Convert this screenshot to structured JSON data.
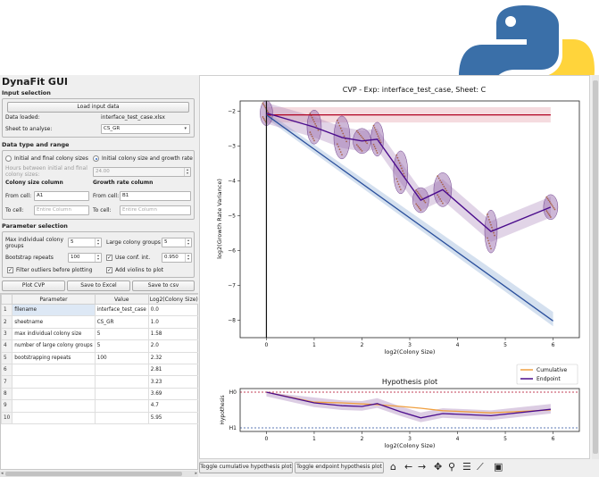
{
  "app_title": "DynaFit GUI",
  "input": {
    "section_label": "Input selection",
    "load_button": "Load input data",
    "data_loaded_label": "Data loaded:",
    "data_loaded_value": "interface_test_case.xlsx",
    "sheet_label": "Sheet to analyse:",
    "sheet_value": "CS_GR"
  },
  "data_type": {
    "section_label": "Data type and range",
    "radio_initial_final": "Initial and final colony sizes",
    "radio_initial_growth": "Initial colony size and growth rate",
    "radio_selected": "initial_growth",
    "hours_label_line1": "Hours between initial and final",
    "hours_label_line2": "colony sizes:",
    "hours_value": "24.00",
    "colony_col_label": "Colony size column",
    "growth_col_label": "Growth rate column",
    "from_cell_label": "From cell:",
    "to_cell_label": "To cell:",
    "colony_from": "A1",
    "growth_from": "B1",
    "to_placeholder": "Entire Column"
  },
  "params": {
    "section_label": "Parameter selection",
    "max_colony_label_line1": "Max individual colony",
    "max_colony_label_line2": "groups",
    "max_colony_value": "5",
    "large_groups_label": "Large colony groups",
    "large_groups_value": "5",
    "bootstrap_label": "Bootstrap repeats",
    "bootstrap_value": "100",
    "use_conf_label": "Use conf. int.",
    "use_conf_checked": true,
    "conf_value": "0.950",
    "filter_outliers_label": "Filter outliers before plotting",
    "filter_outliers_checked": true,
    "add_violins_label": "Add violins to plot",
    "add_violins_checked": true
  },
  "actions": {
    "plot": "Plot CVP",
    "save_excel": "Save to Excel",
    "save_csv": "Save to csv"
  },
  "table": {
    "headers": [
      "Parameter",
      "Value",
      "Log2(Colony Size)"
    ],
    "rows": [
      {
        "n": "1",
        "param": "filename",
        "value": "interface_test_case",
        "log2": "0.0"
      },
      {
        "n": "2",
        "param": "sheetname",
        "value": "CS_GR",
        "log2": "1.0"
      },
      {
        "n": "3",
        "param": "max individual colony size",
        "value": "5",
        "log2": "1.58"
      },
      {
        "n": "4",
        "param": "number of large colony groups",
        "value": "5",
        "log2": "2.0"
      },
      {
        "n": "5",
        "param": "bootstrapping repeats",
        "value": "100",
        "log2": "2.32"
      },
      {
        "n": "6",
        "param": "",
        "value": "",
        "log2": "2.81"
      },
      {
        "n": "7",
        "param": "",
        "value": "",
        "log2": "3.23"
      },
      {
        "n": "8",
        "param": "",
        "value": "",
        "log2": "3.69"
      },
      {
        "n": "9",
        "param": "",
        "value": "",
        "log2": "4.7"
      },
      {
        "n": "10",
        "param": "",
        "value": "",
        "log2": "5.95"
      }
    ]
  },
  "toolbar": {
    "toggle_cumulative": "Toggle cumulative hypothesis plot",
    "toggle_endpoint": "Toggle endpoint hypothesis plot",
    "icons": [
      "home-icon",
      "back-arrow-icon",
      "forward-arrow-icon",
      "pan-icon",
      "zoom-icon",
      "configure-subplots-icon",
      "edit-axis-icon",
      "save-icon"
    ]
  },
  "colors": {
    "cvp_line": "#4b0c8c",
    "h0_line": "#b00020",
    "h1_line": "#2a4f9c",
    "violin_fill": "#9b6fb0",
    "cumulative_line": "#f0a040",
    "endpoint_line": "#4b0c8c",
    "python_blue": "#3a6fa8",
    "python_yellow": "#ffd43b"
  },
  "chart_data": [
    {
      "type": "line",
      "title": "CVP - Exp: interface_test_case, Sheet: C",
      "xlabel": "log2(Colony Size)",
      "ylabel": "log2(Growth Rate Variance)",
      "xlim": [
        -0.55,
        6.55
      ],
      "ylim": [
        -8.5,
        -1.7
      ],
      "xticks": [
        0,
        1,
        2,
        3,
        4,
        5,
        6
      ],
      "yticks": [
        -2,
        -3,
        -4,
        -5,
        -6,
        -7,
        -8
      ],
      "x": [
        0.0,
        1.0,
        1.58,
        2.0,
        2.32,
        2.81,
        3.23,
        3.69,
        4.7,
        5.95
      ],
      "series": [
        {
          "values": [
            -2.05,
            -2.45,
            -2.75,
            -2.85,
            -2.8,
            -3.75,
            -4.55,
            -4.25,
            -5.45,
            -4.75
          ]
        },
        {
          "values": [
            -2.1,
            -2.1,
            -2.1,
            -2.1,
            -2.1,
            -2.1,
            -2.1,
            -2.1,
            -2.1,
            -2.1
          ]
        },
        {
          "values": [
            -2.1,
            -2.7,
            -3.05,
            -3.3,
            -3.5,
            -3.8,
            -4.05,
            -4.33,
            -4.95,
            -5.7
          ]
        }
      ],
      "h1_line_end": {
        "x": 6.0,
        "y": -8.02
      },
      "grid": false
    },
    {
      "type": "line",
      "title": "Hypothesis plot",
      "xlabel": "log2(Colony Size)",
      "ylabel": "Hypothesis",
      "xlim": [
        -0.55,
        6.55
      ],
      "ylim": [
        -0.1,
        1.1
      ],
      "xticks": [
        0,
        1,
        2,
        3,
        4,
        5,
        6
      ],
      "yticklabels": [
        "H0",
        "H1"
      ],
      "x": [
        0.0,
        1.0,
        1.58,
        2.0,
        2.32,
        2.81,
        3.23,
        3.69,
        4.7,
        5.95
      ],
      "series": [
        {
          "name": "Cumulative",
          "values": [
            0.0,
            0.28,
            0.3,
            0.33,
            0.35,
            0.4,
            0.45,
            0.52,
            0.58,
            0.5
          ]
        },
        {
          "name": "Endpoint",
          "values": [
            0.0,
            0.3,
            0.38,
            0.4,
            0.32,
            0.55,
            0.72,
            0.6,
            0.66,
            0.48
          ]
        }
      ],
      "legend": "top-right",
      "grid": false
    }
  ]
}
